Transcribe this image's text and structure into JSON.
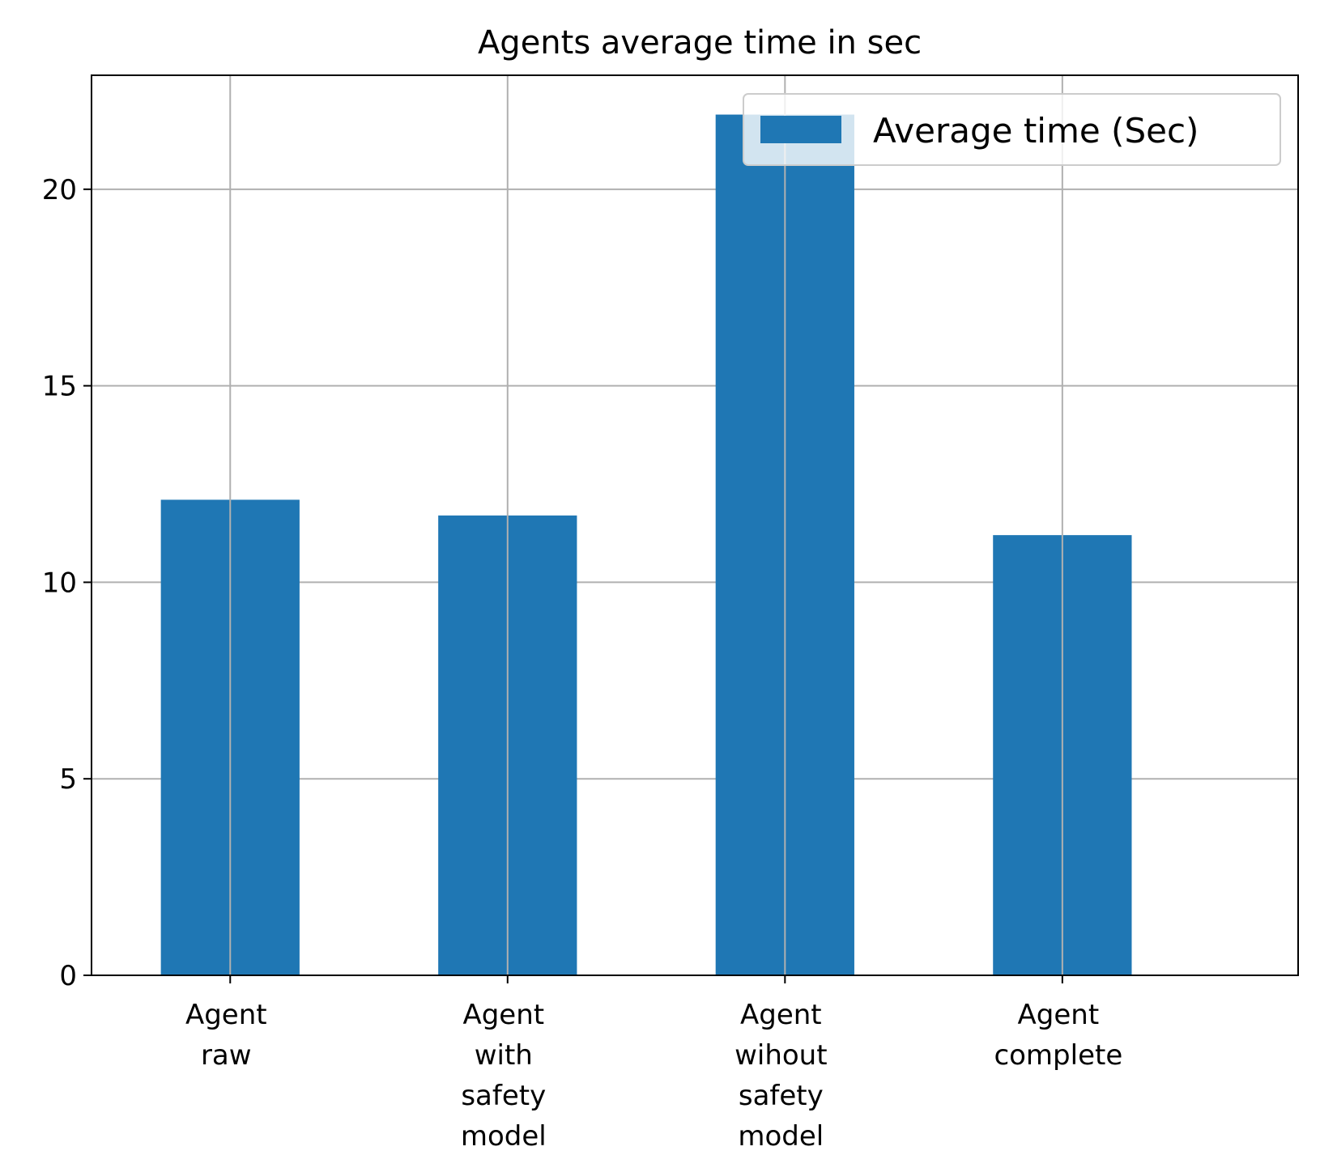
{
  "chart_data": {
    "type": "bar",
    "title": "Agents average time in sec",
    "xlabel": "",
    "ylabel": "",
    "categories": [
      [
        "Agent",
        "raw"
      ],
      [
        "Agent",
        "with",
        "safety",
        "model"
      ],
      [
        "Agent",
        "wihout",
        "safety",
        "model"
      ],
      [
        "Agent",
        "complete"
      ]
    ],
    "series": [
      {
        "name": "Average time (Sec)",
        "values": [
          12.1,
          11.7,
          21.9,
          11.2
        ],
        "color": "#1f77b4"
      }
    ],
    "ylim": [
      0,
      22.9
    ],
    "yticks": [
      0,
      5,
      10,
      15,
      20
    ],
    "grid": true,
    "legend": "top-right"
  }
}
